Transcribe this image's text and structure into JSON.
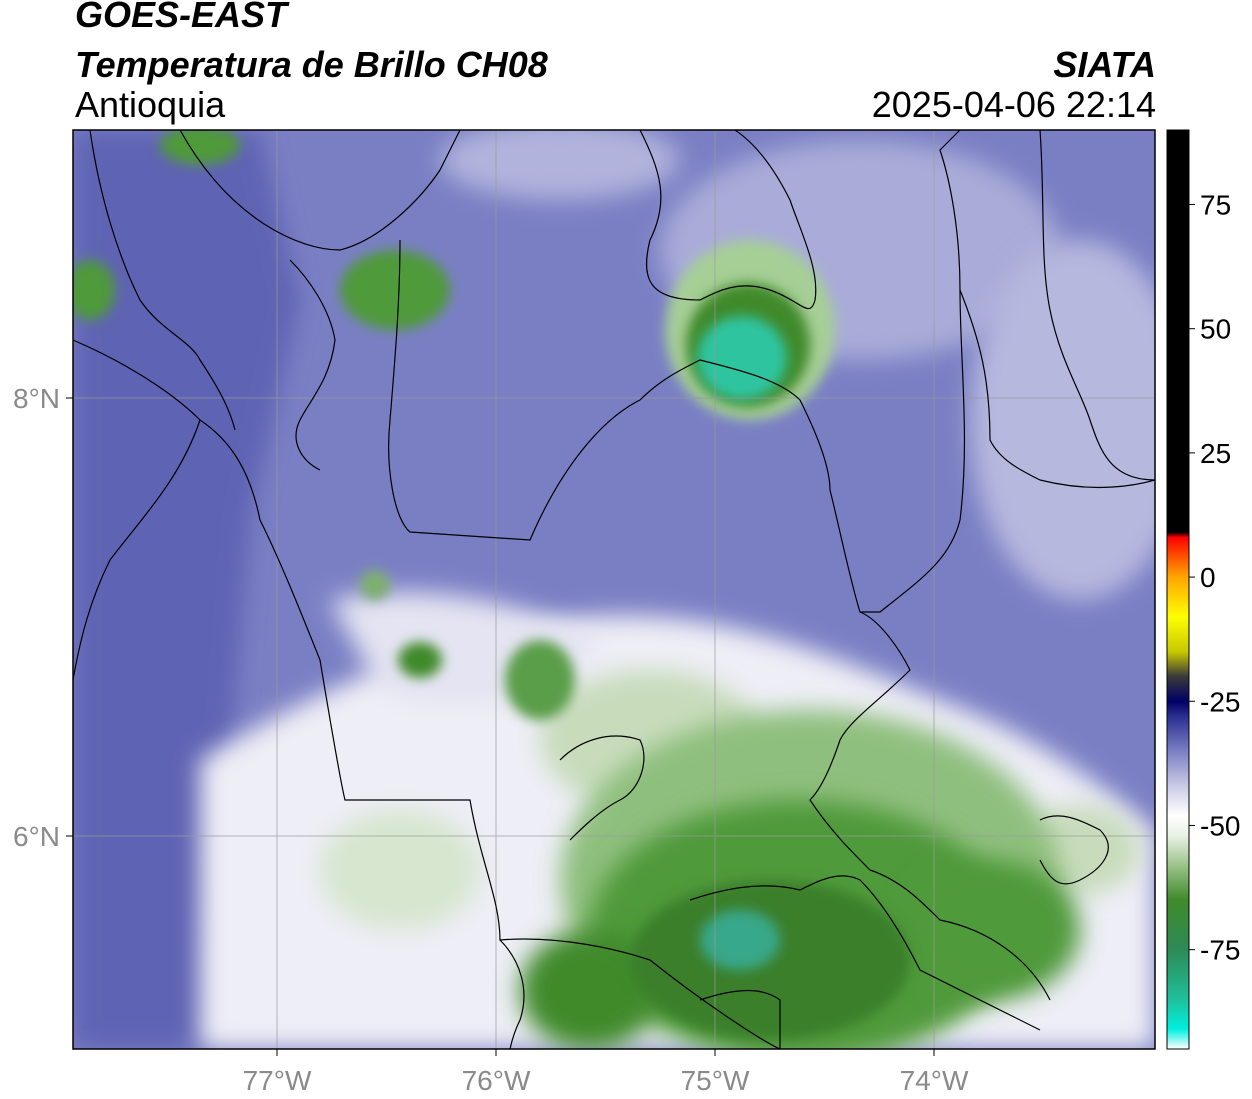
{
  "header": {
    "satellite": "GOES-EAST",
    "product": "Temperatura de Brillo CH08",
    "region": "Antioquia",
    "agency": "SIATA",
    "datetime": "2025-04-06 22:14"
  },
  "map": {
    "lon_ticks": [
      {
        "value": -77,
        "label": "77°W"
      },
      {
        "value": -76,
        "label": "76°W"
      },
      {
        "value": -75,
        "label": "75°W"
      },
      {
        "value": -74,
        "label": "74°W"
      }
    ],
    "lat_ticks": [
      {
        "value": 8,
        "label": "8°N"
      },
      {
        "value": 6,
        "label": "6°N"
      }
    ],
    "colors": {
      "background_cool": "#7a7fc4",
      "mid_white": "#f4f4f8",
      "cold_green": "#3b8a2e",
      "coldest_teal": "#2ec4a0",
      "border": "#000000",
      "grid": "#9a9a9a"
    }
  },
  "colorbar": {
    "unit_range": [
      -95,
      90
    ],
    "ticks": [
      {
        "value": 75,
        "label": "75"
      },
      {
        "value": 50,
        "label": "50"
      },
      {
        "value": 25,
        "label": "25"
      },
      {
        "value": 0,
        "label": "0"
      },
      {
        "value": -25,
        "label": "-25"
      },
      {
        "value": -50,
        "label": "-50"
      },
      {
        "value": -75,
        "label": "-75"
      }
    ],
    "stops": [
      {
        "value": -95,
        "color": "#ffffff"
      },
      {
        "value": -91,
        "color": "#00f0e0"
      },
      {
        "value": -85,
        "color": "#1fbf9a"
      },
      {
        "value": -75,
        "color": "#2e8b57"
      },
      {
        "value": -65,
        "color": "#3f8a2a"
      },
      {
        "value": -58,
        "color": "#9cc48a"
      },
      {
        "value": -52,
        "color": "#eaf2e6"
      },
      {
        "value": -48,
        "color": "#ffffff"
      },
      {
        "value": -42,
        "color": "#c8cae6"
      },
      {
        "value": -35,
        "color": "#7a7fc4"
      },
      {
        "value": -28,
        "color": "#2a2e8f"
      },
      {
        "value": -25,
        "color": "#000066"
      },
      {
        "value": -20,
        "color": "#3a3a3a"
      },
      {
        "value": -15,
        "color": "#c8c800"
      },
      {
        "value": -8,
        "color": "#ffff00"
      },
      {
        "value": 0,
        "color": "#ffa500"
      },
      {
        "value": 5,
        "color": "#ff4000"
      },
      {
        "value": 8,
        "color": "#ff0000"
      },
      {
        "value": 9,
        "color": "#000000"
      },
      {
        "value": 90,
        "color": "#000000"
      }
    ]
  }
}
